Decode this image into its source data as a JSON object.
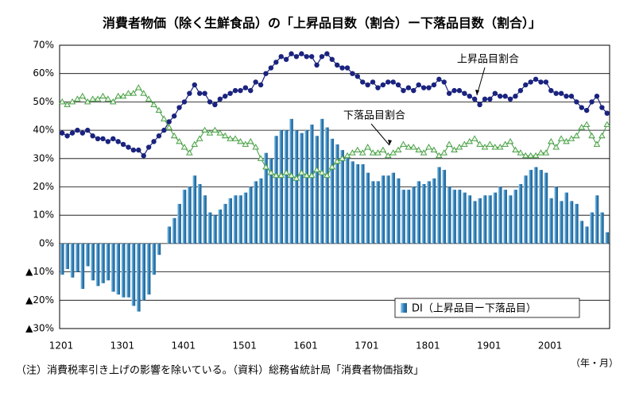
{
  "chart_data": {
    "type": "bar",
    "title": "消費者物価（除く生鮮食品）の「上昇品目数（割合）ー下落品目数（割合）」",
    "note": "（注）消費税率引き上げの影響を除いている。（資料）総務省統計局「消費者物価指数」",
    "x_label": "（年・月）",
    "categories": [
      "1201",
      null,
      null,
      null,
      null,
      null,
      null,
      null,
      null,
      null,
      null,
      null,
      "1301",
      null,
      null,
      null,
      null,
      null,
      null,
      null,
      null,
      null,
      null,
      null,
      "1401",
      null,
      null,
      null,
      null,
      null,
      null,
      null,
      null,
      null,
      null,
      null,
      "1501",
      null,
      null,
      null,
      null,
      null,
      null,
      null,
      null,
      null,
      null,
      null,
      "1601",
      null,
      null,
      null,
      null,
      null,
      null,
      null,
      null,
      null,
      null,
      null,
      "1701",
      null,
      null,
      null,
      null,
      null,
      null,
      null,
      null,
      null,
      null,
      null,
      "1801",
      null,
      null,
      null,
      null,
      null,
      null,
      null,
      null,
      null,
      null,
      null,
      "1901",
      null,
      null,
      null,
      null,
      null,
      null,
      null,
      null,
      null,
      null,
      null,
      "2001",
      null,
      null,
      null,
      null,
      null,
      null,
      null,
      null,
      null,
      null,
      null
    ],
    "series": [
      {
        "name": "DI（上昇品目ー下落品目）",
        "type": "bar",
        "color": "#2f7fb8",
        "values": [
          -11,
          -9,
          -12,
          -10,
          -16,
          -8,
          -13,
          -15,
          -14,
          -13,
          -17,
          -18,
          -19,
          -19,
          -22,
          -24,
          -20,
          -18,
          -11,
          -4,
          0,
          6,
          9,
          14,
          19,
          20,
          24,
          21,
          17,
          11,
          10,
          12,
          14,
          16,
          17,
          17,
          18,
          20,
          22,
          23,
          32,
          30,
          38,
          40,
          40,
          44,
          40,
          39,
          40,
          42,
          38,
          44,
          41,
          37,
          35,
          33,
          31,
          29,
          28,
          28,
          25,
          22,
          22,
          24,
          24,
          25,
          23,
          19,
          19,
          20,
          22,
          21,
          22,
          23,
          27,
          26,
          20,
          19,
          19,
          18,
          17,
          15,
          16,
          17,
          17,
          18,
          20,
          19,
          17,
          19,
          21,
          24,
          26,
          27,
          26,
          25,
          16,
          20,
          15,
          18,
          15,
          14,
          8,
          6,
          11,
          17,
          11,
          4
        ]
      },
      {
        "name": "上昇品目割合",
        "type": "line",
        "marker": "circle",
        "color": "#1a237e",
        "values": [
          39,
          38,
          39,
          40,
          39,
          40,
          38,
          37,
          37,
          36,
          37,
          36,
          35,
          34,
          33,
          33,
          31,
          34,
          36,
          38,
          40,
          43,
          45,
          48,
          50,
          53,
          56,
          53,
          53,
          50,
          49,
          51,
          52,
          53,
          54,
          54,
          55,
          54,
          57,
          56,
          60,
          62,
          64,
          66,
          65,
          67,
          66,
          67,
          66,
          66,
          63,
          66,
          67,
          65,
          63,
          62,
          62,
          60,
          59,
          57,
          56,
          57,
          55,
          56,
          57,
          57,
          56,
          54,
          55,
          54,
          56,
          55,
          55,
          56,
          58,
          57,
          53,
          54,
          54,
          53,
          52,
          51,
          49,
          51,
          51,
          53,
          52,
          52,
          51,
          52,
          54,
          56,
          57,
          58,
          57,
          57,
          54,
          53,
          53,
          52,
          52,
          50,
          48,
          47,
          50,
          52,
          48,
          46
        ]
      },
      {
        "name": "下落品目割合",
        "type": "line",
        "marker": "triangle",
        "color": "#3f9a3f",
        "values": [
          50,
          49,
          50,
          51,
          52,
          50,
          51,
          51,
          52,
          51,
          50,
          52,
          52,
          53,
          53,
          55,
          53,
          51,
          49,
          47,
          44,
          41,
          38,
          36,
          34,
          32,
          35,
          37,
          40,
          39,
          40,
          39,
          38,
          37,
          37,
          36,
          35,
          36,
          34,
          30,
          27,
          25,
          24,
          24,
          25,
          24,
          23,
          25,
          24,
          24,
          26,
          25,
          24,
          27,
          29,
          30,
          31,
          32,
          33,
          32,
          34,
          32,
          32,
          33,
          31,
          32,
          33,
          35,
          34,
          34,
          33,
          32,
          34,
          33,
          31,
          32,
          35,
          33,
          34,
          35,
          36,
          37,
          35,
          34,
          35,
          34,
          34,
          35,
          36,
          33,
          32,
          31,
          31,
          31,
          32,
          32,
          36,
          34,
          37,
          36,
          37,
          38,
          41,
          42,
          38,
          35,
          38,
          42
        ]
      }
    ],
    "ylim": [
      -30,
      70
    ],
    "yticks": [
      {
        "value": -30,
        "label": "▲30%"
      },
      {
        "value": -20,
        "label": "▲20%"
      },
      {
        "value": -10,
        "label": "▲10%"
      },
      {
        "value": 0,
        "label": "0%"
      },
      {
        "value": 10,
        "label": "10%"
      },
      {
        "value": 20,
        "label": "20%"
      },
      {
        "value": 30,
        "label": "30%"
      },
      {
        "value": 40,
        "label": "40%"
      },
      {
        "value": 50,
        "label": "50%"
      },
      {
        "value": 60,
        "label": "60%"
      },
      {
        "value": 70,
        "label": "70%"
      }
    ],
    "grid": true
  }
}
